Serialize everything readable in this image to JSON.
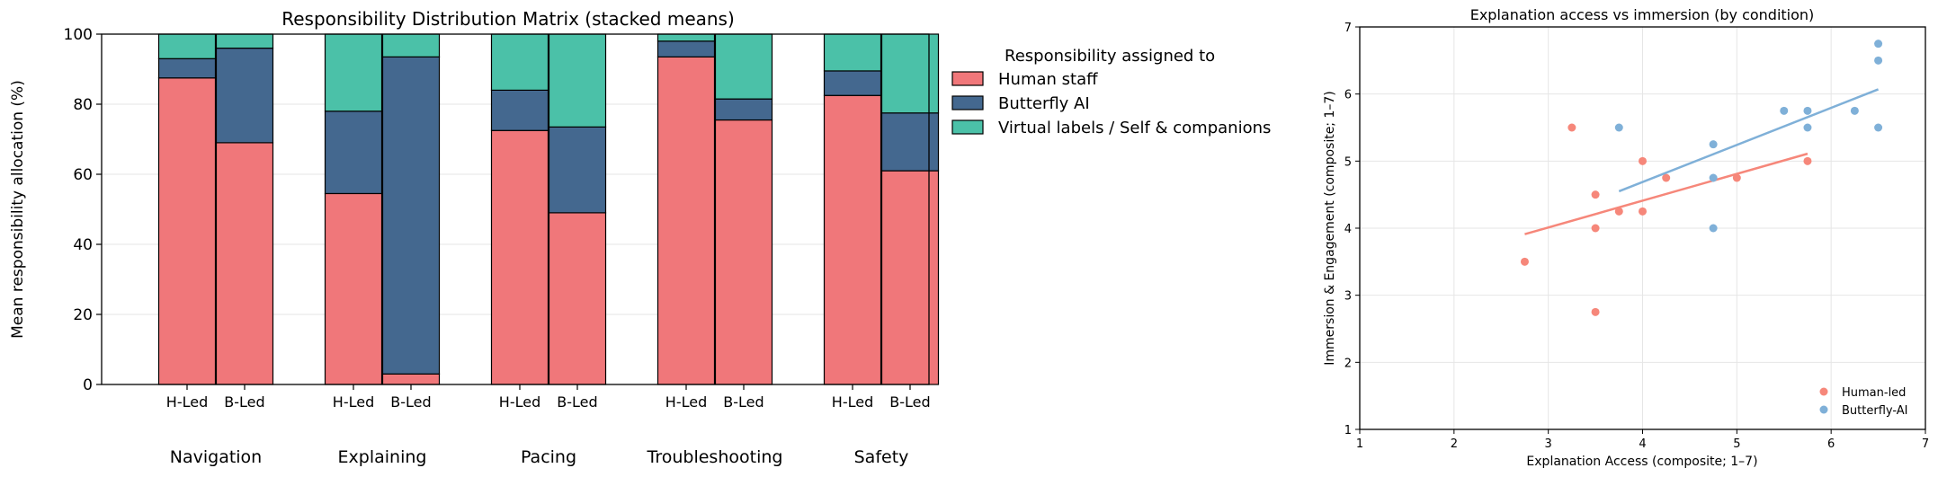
{
  "chart_data": [
    {
      "type": "bar",
      "stacked": true,
      "title": "Responsibility Distribution Matrix (stacked means)",
      "ylabel": "Mean responsibility allocation (%)",
      "xlabel": "",
      "ylim": [
        0,
        100
      ],
      "yticks": [
        0,
        20,
        40,
        60,
        80,
        100
      ],
      "grid": "horizontal",
      "legend": {
        "title": "Responsibility assigned to",
        "placement": "outside-right"
      },
      "groups": [
        "Navigation",
        "Explaining",
        "Pacing",
        "Troubleshooting",
        "Safety"
      ],
      "conditions": [
        "H-Led",
        "B-Led"
      ],
      "series": [
        {
          "name": "Human staff",
          "color": "#f0777a",
          "values": [
            [
              87.5,
              69
            ],
            [
              54.5,
              3
            ],
            [
              72.5,
              49
            ],
            [
              93.5,
              75.5
            ],
            [
              82.5,
              61
            ]
          ]
        },
        {
          "name": "Butterfly AI",
          "color": "#44688f",
          "values": [
            [
              5.5,
              27
            ],
            [
              23.5,
              90.5
            ],
            [
              11.5,
              24.5
            ],
            [
              4.5,
              6
            ],
            [
              7,
              16.5
            ]
          ]
        },
        {
          "name": "Virtual labels / Self & companions",
          "color": "#4bc1a8",
          "values": [
            [
              7,
              4
            ],
            [
              22,
              6.5
            ],
            [
              16,
              26.5
            ],
            [
              2,
              18.5
            ],
            [
              10.5,
              22.5
            ]
          ]
        }
      ]
    },
    {
      "type": "scatter",
      "title": "Explanation access vs immersion (by condition)",
      "xlabel": "Explanation Access (composite; 1–7)",
      "ylabel": "Immersion & Engagement (composite; 1–7)",
      "xlim": [
        1,
        7
      ],
      "ylim": [
        1,
        7
      ],
      "xticks": [
        1,
        2,
        3,
        4,
        5,
        6,
        7
      ],
      "yticks": [
        1,
        2,
        3,
        4,
        5,
        6,
        7
      ],
      "grid": "both",
      "legend": {
        "placement": "bottom-right"
      },
      "series": [
        {
          "name": "Human-led",
          "color": "#f6877a",
          "points": [
            [
              2.75,
              3.5
            ],
            [
              3.25,
              5.5
            ],
            [
              3.5,
              2.75
            ],
            [
              3.5,
              4.0
            ],
            [
              3.5,
              4.5
            ],
            [
              3.75,
              4.25
            ],
            [
              4.0,
              4.25
            ],
            [
              4.0,
              5.0
            ],
            [
              4.25,
              4.75
            ],
            [
              5.0,
              4.75
            ],
            [
              5.75,
              5.0
            ]
          ],
          "trend": {
            "x": [
              2.75,
              5.75
            ],
            "y": [
              3.91,
              5.11
            ]
          }
        },
        {
          "name": "Butterfly-AI",
          "color": "#7fb0d8",
          "points": [
            [
              3.75,
              5.5
            ],
            [
              4.75,
              4.0
            ],
            [
              4.75,
              4.75
            ],
            [
              4.75,
              5.25
            ],
            [
              5.5,
              5.75
            ],
            [
              5.75,
              5.5
            ],
            [
              5.75,
              5.75
            ],
            [
              6.25,
              5.75
            ],
            [
              6.5,
              5.5
            ],
            [
              6.5,
              6.5
            ],
            [
              6.5,
              6.75
            ]
          ],
          "trend": {
            "x": [
              3.75,
              6.5
            ],
            "y": [
              4.55,
              6.07
            ]
          }
        }
      ]
    }
  ]
}
